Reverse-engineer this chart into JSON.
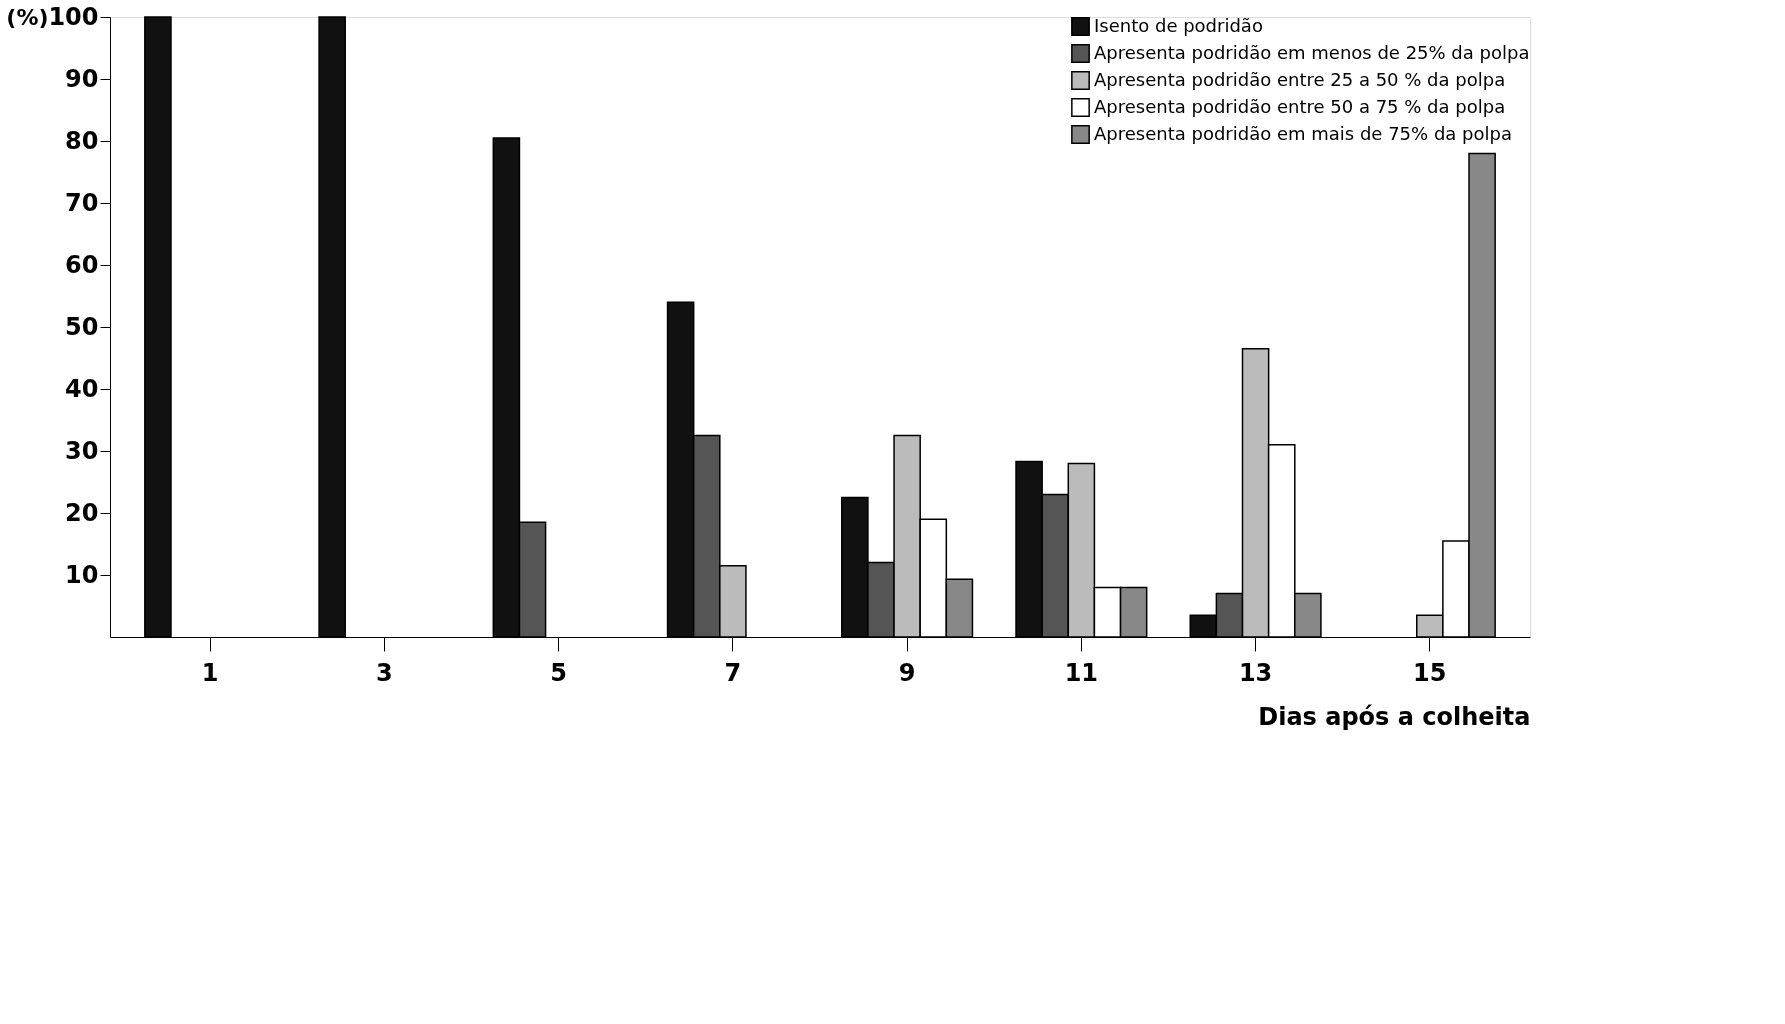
{
  "chart_data": {
    "type": "bar",
    "xlabel": "Dias  após a colheita",
    "ylabel": "(%)",
    "categories": [
      "1",
      "3",
      "5",
      "7",
      "9",
      "11",
      "13",
      "15"
    ],
    "series": [
      {
        "name": "Isento de podridão",
        "color": "#111111",
        "values": [
          100,
          100,
          80.5,
          54,
          22.5,
          28.3,
          3.5,
          null
        ]
      },
      {
        "name": "Apresenta podridão em menos de 25% da polpa",
        "color": "#555555",
        "values": [
          null,
          null,
          18.5,
          32.5,
          12,
          23,
          7,
          null
        ]
      },
      {
        "name": "Apresenta podridão entre 25 a 50 % da polpa",
        "color": "#bbbbbb",
        "values": [
          null,
          null,
          null,
          11.5,
          32.5,
          28,
          46.5,
          3.5
        ]
      },
      {
        "name": "Apresenta podridão entre 50 a 75 % da polpa",
        "color": "#ffffff",
        "values": [
          null,
          null,
          null,
          null,
          19,
          8,
          31,
          15.5
        ]
      },
      {
        "name": "Apresenta podridão em mais de 75% da polpa",
        "color": "#888888",
        "values": [
          null,
          null,
          null,
          null,
          9.3,
          8,
          7,
          78
        ]
      }
    ],
    "ylim": [
      0,
      100
    ],
    "yticks": [
      10,
      20,
      30,
      40,
      50,
      60,
      70,
      80,
      90,
      100
    ],
    "grid": false,
    "legend": "top right"
  }
}
